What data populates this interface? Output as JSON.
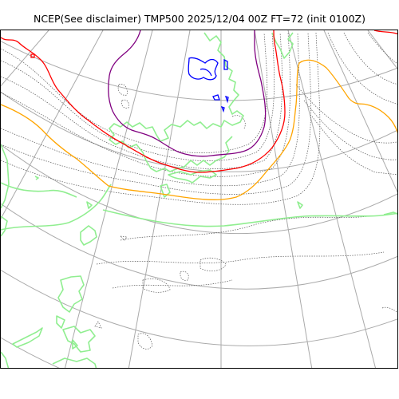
{
  "title": "NCEP(See disclaimer) TMP500 2025/12/04 00Z FT=72 (init 0100Z)",
  "map": {
    "colors": {
      "background": "#ffffff",
      "graticule": "#aaaaaa",
      "coastline": "#90ee90",
      "isotherm_dotted": "#555555",
      "contour_red": "#ff0000",
      "contour_orange": "#ffa500",
      "contour_purple": "#800080",
      "contour_blue": "#0000ff"
    }
  }
}
